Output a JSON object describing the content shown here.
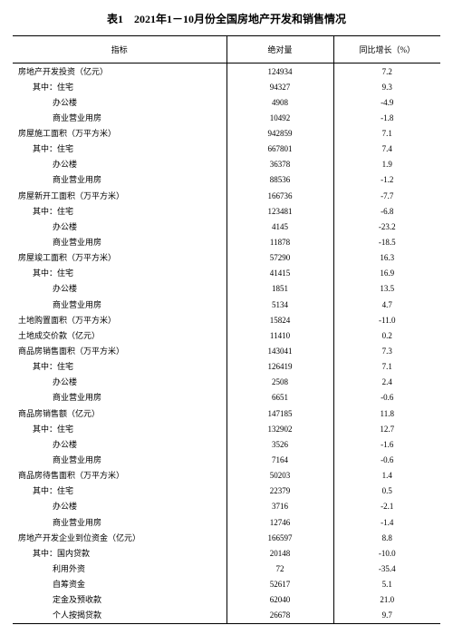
{
  "title": "表1　2021年1－10月份全国房地产开发和销售情况",
  "columns": {
    "c1": "指标",
    "c2": "绝对量",
    "c3": "同比增长（%）"
  },
  "rows": [
    {
      "name": "房地产开发投资（亿元）",
      "indent": 0,
      "value": "124934",
      "growth": "7.2"
    },
    {
      "name": "其中：住宅",
      "indent": 1,
      "value": "94327",
      "growth": "9.3"
    },
    {
      "name": "办公楼",
      "indent": 2,
      "value": "4908",
      "growth": "-4.9"
    },
    {
      "name": "商业营业用房",
      "indent": 2,
      "value": "10492",
      "growth": "-1.8"
    },
    {
      "name": "房屋施工面积（万平方米）",
      "indent": 0,
      "value": "942859",
      "growth": "7.1"
    },
    {
      "name": "其中：住宅",
      "indent": 1,
      "value": "667801",
      "growth": "7.4"
    },
    {
      "name": "办公楼",
      "indent": 2,
      "value": "36378",
      "growth": "1.9"
    },
    {
      "name": "商业营业用房",
      "indent": 2,
      "value": "88536",
      "growth": "-1.2"
    },
    {
      "name": "房屋新开工面积（万平方米）",
      "indent": 0,
      "value": "166736",
      "growth": "-7.7"
    },
    {
      "name": "其中：住宅",
      "indent": 1,
      "value": "123481",
      "growth": "-6.8"
    },
    {
      "name": "办公楼",
      "indent": 2,
      "value": "4145",
      "growth": "-23.2"
    },
    {
      "name": "商业营业用房",
      "indent": 2,
      "value": "11878",
      "growth": "-18.5"
    },
    {
      "name": "房屋竣工面积（万平方米）",
      "indent": 0,
      "value": "57290",
      "growth": "16.3"
    },
    {
      "name": "其中：住宅",
      "indent": 1,
      "value": "41415",
      "growth": "16.9"
    },
    {
      "name": "办公楼",
      "indent": 2,
      "value": "1851",
      "growth": "13.5"
    },
    {
      "name": "商业营业用房",
      "indent": 2,
      "value": "5134",
      "growth": "4.7"
    },
    {
      "name": "土地购置面积（万平方米）",
      "indent": 0,
      "value": "15824",
      "growth": "-11.0"
    },
    {
      "name": "土地成交价款（亿元）",
      "indent": 0,
      "value": "11410",
      "growth": "0.2"
    },
    {
      "name": "商品房销售面积（万平方米）",
      "indent": 0,
      "value": "143041",
      "growth": "7.3"
    },
    {
      "name": "其中：住宅",
      "indent": 1,
      "value": "126419",
      "growth": "7.1"
    },
    {
      "name": "办公楼",
      "indent": 2,
      "value": "2508",
      "growth": "2.4"
    },
    {
      "name": "商业营业用房",
      "indent": 2,
      "value": "6651",
      "growth": "-0.6"
    },
    {
      "name": "商品房销售额（亿元）",
      "indent": 0,
      "value": "147185",
      "growth": "11.8"
    },
    {
      "name": "其中：住宅",
      "indent": 1,
      "value": "132902",
      "growth": "12.7"
    },
    {
      "name": "办公楼",
      "indent": 2,
      "value": "3526",
      "growth": "-1.6"
    },
    {
      "name": "商业营业用房",
      "indent": 2,
      "value": "7164",
      "growth": "-0.6"
    },
    {
      "name": "商品房待售面积（万平方米）",
      "indent": 0,
      "value": "50203",
      "growth": "1.4"
    },
    {
      "name": "其中：住宅",
      "indent": 1,
      "value": "22379",
      "growth": "0.5"
    },
    {
      "name": "办公楼",
      "indent": 2,
      "value": "3716",
      "growth": "-2.1"
    },
    {
      "name": "商业营业用房",
      "indent": 2,
      "value": "12746",
      "growth": "-1.4"
    },
    {
      "name": "房地产开发企业到位资金（亿元）",
      "indent": 0,
      "value": "166597",
      "growth": "8.8"
    },
    {
      "name": "其中：国内贷款",
      "indent": 1,
      "value": "20148",
      "growth": "-10.0"
    },
    {
      "name": "利用外资",
      "indent": 2,
      "value": "72",
      "growth": "-35.4"
    },
    {
      "name": "自筹资金",
      "indent": 2,
      "value": "52617",
      "growth": "5.1"
    },
    {
      "name": "定金及预收款",
      "indent": 2,
      "value": "62040",
      "growth": "21.0"
    },
    {
      "name": "个人按揭贷款",
      "indent": 2,
      "value": "26678",
      "growth": "9.7"
    }
  ]
}
